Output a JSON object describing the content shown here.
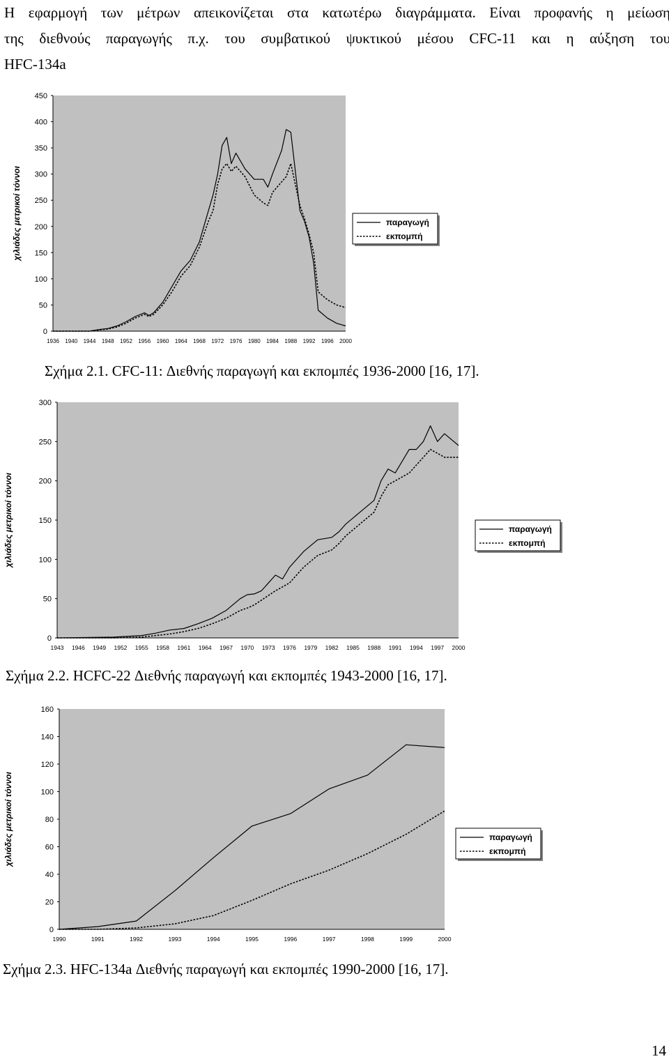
{
  "intro": {
    "line1": "Η εφαρμογή των μέτρων απεικονίζεται  στα κατωτέρω διαγράμματα. Είναι προφανής η μείωση",
    "line2": "της  διεθνούς παραγωγής π.χ. του  συμβατικού ψυκτικού μέσου  CFC-11 και η αύξηση του",
    "line3": "HFC-134a"
  },
  "colors": {
    "plot_bg": "#c0c0c0",
    "line": "#000000",
    "page_bg": "#ffffff"
  },
  "captions": {
    "fig1": "Σχήμα  2.1. CFC-11: Διεθνής παραγωγή και εκπομπές 1936-2000 [16, 17].",
    "fig2": "Σχήμα 2.2. HCFC-22 Διεθνής παραγωγή και εκπομπές 1943-2000 [16, 17].",
    "fig3": "Σχήμα 2.3. HFC-134a Διεθνής παραγωγή και εκπομπές 1990-2000 [16, 17]."
  },
  "page_number": "14",
  "chart_data": [
    {
      "type": "line",
      "title": "",
      "xlabel": "",
      "ylabel": "χιλιάδες μετρικοί τόννοι",
      "xlim": [
        1936,
        2000
      ],
      "ylim": [
        0,
        450
      ],
      "yticks": [
        0,
        50,
        100,
        150,
        200,
        250,
        300,
        350,
        400,
        450
      ],
      "xticks": [
        1936,
        1940,
        1944,
        1948,
        1952,
        1956,
        1960,
        1964,
        1968,
        1972,
        1976,
        1980,
        1984,
        1988,
        1992,
        1996,
        2000
      ],
      "grid": false,
      "legend": "right",
      "x": [
        1936,
        1944,
        1946,
        1948,
        1950,
        1952,
        1954,
        1956,
        1957,
        1958,
        1960,
        1962,
        1964,
        1966,
        1968,
        1970,
        1971,
        1972,
        1973,
        1974,
        1975,
        1976,
        1978,
        1980,
        1982,
        1983,
        1984,
        1986,
        1987,
        1988,
        1990,
        1991,
        1992,
        1993,
        1994,
        1996,
        1998,
        2000
      ],
      "series": [
        {
          "name": "παραγωγή",
          "style": "solid",
          "values": [
            0,
            0,
            3,
            5,
            10,
            18,
            28,
            35,
            30,
            35,
            55,
            85,
            115,
            135,
            170,
            230,
            260,
            300,
            355,
            370,
            320,
            340,
            310,
            290,
            290,
            275,
            300,
            345,
            385,
            380,
            230,
            210,
            180,
            130,
            40,
            25,
            15,
            10
          ]
        },
        {
          "name": "εκπομπή",
          "style": "dotted",
          "values": [
            0,
            0,
            2,
            4,
            8,
            15,
            25,
            32,
            28,
            32,
            50,
            75,
            105,
            125,
            160,
            210,
            230,
            280,
            310,
            320,
            305,
            315,
            295,
            260,
            245,
            240,
            265,
            285,
            295,
            320,
            240,
            215,
            185,
            150,
            75,
            60,
            50,
            45
          ]
        }
      ]
    },
    {
      "type": "line",
      "title": "",
      "xlabel": "",
      "ylabel": "χιλιάδες μετρικοί τόννοι",
      "xlim": [
        1943,
        2000
      ],
      "ylim": [
        0,
        300
      ],
      "yticks": [
        0,
        50,
        100,
        150,
        200,
        250,
        300
      ],
      "xticks": [
        1943,
        1946,
        1949,
        1952,
        1955,
        1958,
        1961,
        1964,
        1967,
        1970,
        1973,
        1976,
        1979,
        1982,
        1985,
        1988,
        1991,
        1994,
        1997,
        2000
      ],
      "grid": false,
      "legend": "right",
      "x": [
        1943,
        1951,
        1955,
        1957,
        1959,
        1961,
        1963,
        1965,
        1967,
        1969,
        1970,
        1971,
        1972,
        1974,
        1975,
        1976,
        1978,
        1980,
        1982,
        1983,
        1984,
        1986,
        1988,
        1989,
        1990,
        1991,
        1993,
        1994,
        1995,
        1996,
        1997,
        1998,
        2000
      ],
      "series": [
        {
          "name": "παραγωγή",
          "style": "solid",
          "values": [
            0,
            1,
            3,
            6,
            10,
            12,
            18,
            25,
            35,
            50,
            55,
            56,
            60,
            80,
            75,
            90,
            110,
            125,
            128,
            135,
            145,
            160,
            175,
            200,
            215,
            210,
            240,
            240,
            250,
            270,
            250,
            260,
            245
          ]
        },
        {
          "name": "εκπομπή",
          "style": "dotted",
          "values": [
            0,
            0,
            1,
            3,
            5,
            8,
            12,
            18,
            25,
            35,
            38,
            42,
            48,
            60,
            65,
            70,
            90,
            105,
            112,
            120,
            130,
            145,
            160,
            180,
            195,
            200,
            210,
            220,
            230,
            240,
            235,
            230,
            230
          ]
        }
      ]
    },
    {
      "type": "line",
      "title": "",
      "xlabel": "",
      "ylabel": "χιλιάδες μετρικοί τόννοι",
      "xlim": [
        1990,
        2000
      ],
      "ylim": [
        0,
        160
      ],
      "yticks": [
        0,
        20,
        40,
        60,
        80,
        100,
        120,
        140,
        160
      ],
      "xticks": [
        1990,
        1991,
        1992,
        1993,
        1994,
        1995,
        1996,
        1997,
        1998,
        1999,
        2000
      ],
      "grid": false,
      "legend": "right",
      "x": [
        1990,
        1991,
        1992,
        1993,
        1994,
        1995,
        1996,
        1997,
        1998,
        1999,
        2000
      ],
      "series": [
        {
          "name": "παραγωγή",
          "style": "solid",
          "values": [
            0,
            2,
            6,
            28,
            52,
            75,
            84,
            102,
            112,
            134,
            132
          ]
        },
        {
          "name": "εκπομπή",
          "style": "dotted",
          "values": [
            0,
            0,
            1,
            4,
            10,
            21,
            33,
            43,
            55,
            69,
            86
          ]
        }
      ]
    }
  ]
}
